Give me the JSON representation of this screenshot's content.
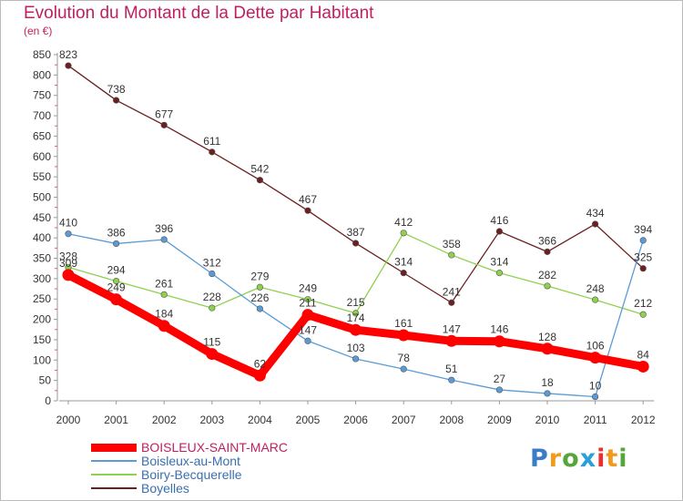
{
  "title": "Evolution du Montant de la Dette par Habitant",
  "unit": "(en €)",
  "logo_text": "Proxiti",
  "chart_data": {
    "type": "line",
    "x": [
      "2000",
      "2001",
      "2002",
      "2003",
      "2004",
      "2005",
      "2006",
      "2007",
      "2008",
      "2009",
      "2010",
      "2011",
      "2012"
    ],
    "yticks": [
      0,
      50,
      100,
      150,
      200,
      250,
      300,
      350,
      400,
      450,
      500,
      550,
      600,
      650,
      700,
      750,
      800,
      850
    ],
    "ylim": [
      0,
      850
    ],
    "grid": false,
    "legend_position": "bottom-left",
    "series": [
      {
        "name": "BOISLEUX-SAINT-MARC",
        "color": "#ff0000",
        "values": [
          309,
          249,
          184,
          115,
          62,
          211,
          174,
          161,
          147,
          146,
          128,
          106,
          84
        ],
        "labels": [
          "309",
          "249",
          "184",
          "115",
          "62",
          "211",
          "174",
          "161",
          "147",
          "146",
          "128",
          "106",
          "84"
        ]
      },
      {
        "name": "Boisleux-au-Mont",
        "color": "#5b9bd5",
        "values": [
          410,
          386,
          396,
          312,
          226,
          147,
          103,
          78,
          51,
          27,
          18,
          10,
          394
        ],
        "labels": [
          "410",
          "386",
          "396",
          "312",
          "226",
          "147",
          "103",
          "78",
          "51",
          "27",
          "18",
          "10",
          "394"
        ]
      },
      {
        "name": "Boiry-Becquerelle",
        "color": "#8fd14f",
        "values": [
          328,
          294,
          261,
          228,
          279,
          249,
          215,
          412,
          358,
          314,
          282,
          248,
          212
        ],
        "labels": [
          "328",
          "294",
          "261",
          "228",
          "279",
          "249",
          "215",
          "412",
          "358",
          "314",
          "282",
          "248",
          "212"
        ]
      },
      {
        "name": "Boyelles",
        "color": "#6b1f1f",
        "values": [
          823,
          738,
          677,
          611,
          542,
          467,
          387,
          314,
          241,
          416,
          366,
          434,
          325
        ],
        "labels": [
          "823",
          "738",
          "677",
          "611",
          "542",
          "467",
          "387",
          "314",
          "241",
          "416",
          "366",
          "434",
          "325"
        ]
      }
    ]
  }
}
